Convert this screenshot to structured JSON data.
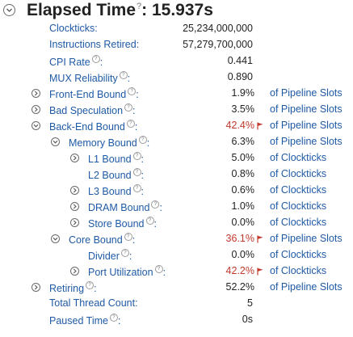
{
  "header": {
    "title": "Elapsed Time",
    "value": "15.937s",
    "help": "?"
  },
  "rows": [
    {
      "label": "Clockticks",
      "value": "25,234,000,000",
      "unit": "",
      "help": false,
      "toggle": false,
      "warn": false
    },
    {
      "label": "Instructions Retired",
      "value": "57,279,700,000",
      "unit": "",
      "help": false,
      "toggle": false,
      "warn": false
    },
    {
      "label": "CPI Rate",
      "value": "0.441",
      "unit": "",
      "help": true,
      "toggle": false,
      "warn": false
    },
    {
      "label": "MUX Reliability",
      "value": "0.890",
      "unit": "",
      "help": true,
      "toggle": false,
      "warn": false
    },
    {
      "label": "Front-End Bound",
      "value": "1.9%",
      "unit": "of Pipeline Slots",
      "help": true,
      "toggle": "collapsed",
      "warn": false
    },
    {
      "label": "Bad Speculation",
      "value": "3.5%",
      "unit": "of Pipeline Slots",
      "help": true,
      "toggle": "collapsed",
      "warn": false
    },
    {
      "label": "Back-End Bound",
      "value": "42.4%",
      "unit": "of Pipeline Slots",
      "help": true,
      "toggle": "expanded",
      "warn": true
    },
    {
      "label": "Memory Bound",
      "value": "6.3%",
      "unit": "of Pipeline Slots",
      "help": true,
      "toggle": "expanded",
      "warn": false
    },
    {
      "label": "L1 Bound",
      "value": "5.0%",
      "unit": "of Clockticks",
      "help": true,
      "toggle": "collapsed",
      "warn": false
    },
    {
      "label": "L2 Bound",
      "value": "0.8%",
      "unit": "of Clockticks",
      "help": true,
      "toggle": false,
      "warn": false
    },
    {
      "label": "L3 Bound",
      "value": "0.6%",
      "unit": "of Clockticks",
      "help": true,
      "toggle": "collapsed",
      "warn": false
    },
    {
      "label": "DRAM Bound",
      "value": "1.0%",
      "unit": "of Clockticks",
      "help": true,
      "toggle": "collapsed",
      "warn": false
    },
    {
      "label": "Store Bound",
      "value": "0.0%",
      "unit": "of Clockticks",
      "help": true,
      "toggle": "collapsed",
      "warn": false
    },
    {
      "label": "Core Bound",
      "value": "36.1%",
      "unit": "of Pipeline Slots",
      "help": true,
      "toggle": "expanded",
      "warn": true
    },
    {
      "label": "Divider",
      "value": "0.0%",
      "unit": "of Clockticks",
      "help": true,
      "toggle": false,
      "warn": false
    },
    {
      "label": "Port Utilization",
      "value": "42.2%",
      "unit": "of Clockticks",
      "help": true,
      "toggle": "collapsed",
      "warn": true
    },
    {
      "label": "Retiring",
      "value": "52.2%",
      "unit": "of Pipeline Slots",
      "help": true,
      "toggle": "collapsed",
      "warn": false
    },
    {
      "label": "Total Thread Count",
      "value": "5",
      "unit": "",
      "help": false,
      "toggle": false,
      "warn": false
    },
    {
      "label": "Paused Time",
      "value": "0s",
      "unit": "",
      "help": true,
      "toggle": false,
      "warn": false
    }
  ],
  "colors": {
    "label": "#1f5aa6",
    "warning": "#c0392b",
    "text": "#222222"
  }
}
